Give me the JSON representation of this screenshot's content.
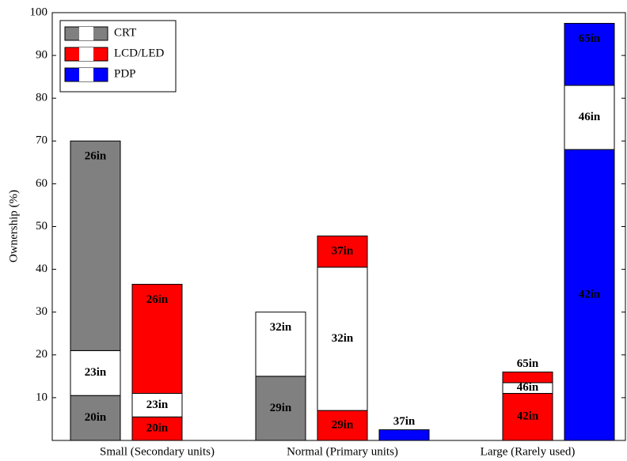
{
  "chart_data": {
    "type": "grouped_stacked_bar",
    "y_label": "Ownership (%)",
    "categories": [
      "Small (Secondary units)",
      "Normal (Primary units)",
      "Large (Rarely used)"
    ],
    "series": [
      {
        "name": "CRT",
        "color": "#808080",
        "stacks": [
          [
            {
              "label": "20in",
              "value": 10.5
            },
            {
              "label": "23in",
              "value": 10.5
            },
            {
              "label": "26in",
              "value": 49
            }
          ],
          [
            {
              "label": "29in",
              "value": 15
            },
            {
              "label": "32in",
              "value": 15
            }
          ],
          []
        ]
      },
      {
        "name": "LCD/LED",
        "color": "#ff0000",
        "stacks": [
          [
            {
              "label": "20in",
              "value": 5.5
            },
            {
              "label": "23in",
              "value": 5.5
            },
            {
              "label": "26in",
              "value": 25.5
            }
          ],
          [
            {
              "label": "29in",
              "value": 7
            },
            {
              "label": "32in",
              "value": 33.5
            },
            {
              "label": "37in",
              "value": 7.3
            }
          ],
          [
            {
              "label": "42in",
              "value": 11
            },
            {
              "label": "46in",
              "value": 2.5
            },
            {
              "label": "65in",
              "value": 2.5
            }
          ]
        ]
      },
      {
        "name": "PDP",
        "color": "#0000ff",
        "stacks": [
          [],
          [
            {
              "label": "37in",
              "value": 2.5
            }
          ],
          [
            {
              "label": "42in",
              "value": 68
            },
            {
              "label": "46in",
              "value": 15
            },
            {
              "label": "65in",
              "value": 14.5
            }
          ]
        ]
      }
    ],
    "ylim": [
      0,
      100
    ],
    "yticks": [
      10,
      20,
      30,
      40,
      50,
      60,
      70,
      80,
      90,
      100
    ],
    "grid": false,
    "legend": "upper left"
  }
}
